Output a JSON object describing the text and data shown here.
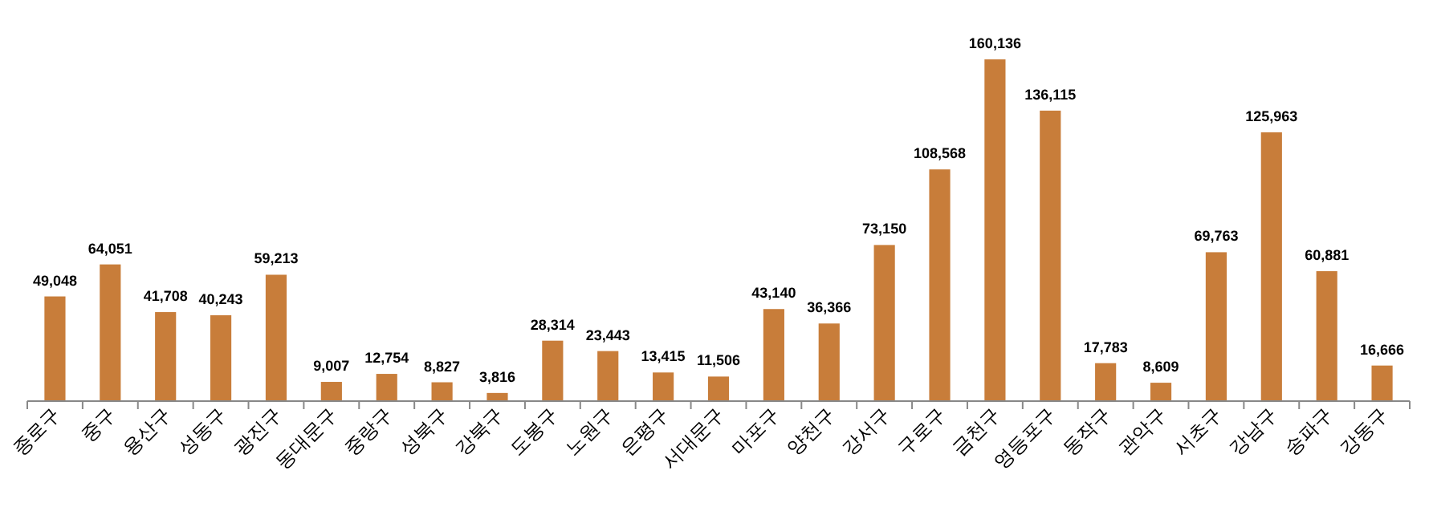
{
  "chart_data": {
    "type": "bar",
    "categories": [
      "종로구",
      "중구",
      "용산구",
      "성동구",
      "광진구",
      "동대문구",
      "중랑구",
      "성북구",
      "강북구",
      "도봉구",
      "노원구",
      "은평구",
      "서대문구",
      "마포구",
      "양천구",
      "강서구",
      "구로구",
      "금천구",
      "영등포구",
      "동작구",
      "관악구",
      "서초구",
      "강남구",
      "송파구",
      "강동구"
    ],
    "values": [
      49048,
      64051,
      41708,
      40243,
      59213,
      9007,
      12754,
      8827,
      3816,
      28314,
      23443,
      13415,
      11506,
      43140,
      36366,
      73150,
      108568,
      160136,
      136115,
      17783,
      8609,
      69763,
      125963,
      60881,
      16666
    ],
    "value_labels": [
      "49,048",
      "64,051",
      "41,708",
      "40,243",
      "59,213",
      "9,007",
      "12,754",
      "8,827",
      "3,816",
      "28,314",
      "23,443",
      "13,415",
      "11,506",
      "43,140",
      "36,366",
      "73,150",
      "108,568",
      "160,136",
      "136,115",
      "17,783",
      "8,609",
      "69,763",
      "125,963",
      "60,881",
      "16,666"
    ],
    "color": "#c87d3a"
  }
}
